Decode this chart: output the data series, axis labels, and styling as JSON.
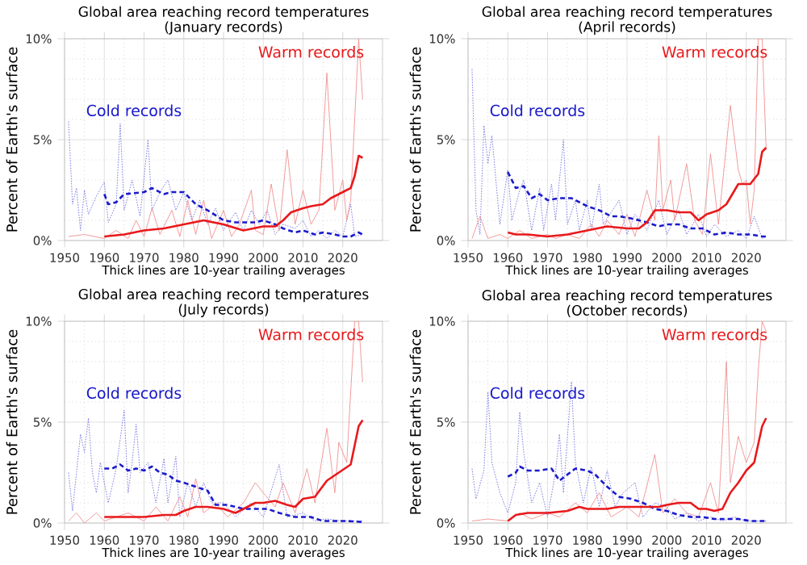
{
  "chart_data": [
    {
      "type": "line",
      "title": "Global area reaching record temperatures",
      "subtitle": "(January records)",
      "xlabel": "Thick lines are 10-year trailing averages",
      "ylabel": "Percent of Earth's surface",
      "xlim": [
        1950,
        2030
      ],
      "ylim": [
        0,
        10
      ],
      "xticks": [
        1950,
        1960,
        1970,
        1980,
        1990,
        2000,
        2010,
        2020
      ],
      "yticks": [
        {
          "value": 0,
          "label": "0%"
        },
        {
          "value": 5,
          "label": "5%"
        },
        {
          "value": 10,
          "label": "10%"
        }
      ],
      "grid": true,
      "series": [
        {
          "color": "#7070e0",
          "line_style": "dotted",
          "x": [
            1951,
            1952,
            1953,
            1954,
            1955,
            1956,
            1958,
            1960,
            1961,
            1963,
            1964,
            1965,
            1967,
            1969,
            1971,
            1972,
            1974,
            1976,
            1978,
            1980,
            1982,
            1984,
            1986,
            1988,
            1990,
            1993,
            1995,
            1997,
            1999,
            2001,
            2003,
            2005,
            2008,
            2010,
            2012,
            2014,
            2016,
            2018,
            2020,
            2022,
            2023,
            2025
          ],
          "values": [
            5.9,
            1.8,
            2.6,
            0.5,
            2.5,
            1.3,
            2.2,
            2.9,
            0.9,
            1.8,
            5.8,
            1.5,
            3.0,
            1.2,
            5.0,
            1.5,
            2.4,
            3.0,
            1.5,
            2.4,
            1.0,
            2.0,
            0.8,
            1.6,
            0.5,
            1.4,
            0.5,
            1.5,
            0.8,
            1.5,
            0.3,
            0.8,
            0.6,
            1.0,
            0.2,
            0.5,
            0.1,
            0.5,
            0.2,
            1.8,
            0.2,
            0.3
          ]
        },
        {
          "color": "#f09090",
          "line_style": "solid",
          "x": [
            1951,
            1955,
            1960,
            1963,
            1966,
            1968,
            1970,
            1972,
            1974,
            1977,
            1979,
            1981,
            1983,
            1985,
            1987,
            1990,
            1992,
            1994,
            1997,
            1998,
            2000,
            2002,
            2004,
            2006,
            2008,
            2010,
            2012,
            2014,
            2016,
            2018,
            2020,
            2021,
            2022,
            2023,
            2024,
            2025
          ],
          "values": [
            0.2,
            0.3,
            0.1,
            0.5,
            0.1,
            1.0,
            0.2,
            1.6,
            0.3,
            1.5,
            0.2,
            2.0,
            0.3,
            2.0,
            0.1,
            1.5,
            0.2,
            0.8,
            2.5,
            0.5,
            0.3,
            2.8,
            0.5,
            4.5,
            0.8,
            2.5,
            0.8,
            1.5,
            8.3,
            1.5,
            3.0,
            1.0,
            2.0,
            6.0,
            10,
            7.0
          ]
        },
        {
          "name": "Cold records",
          "color": "#1a1acc",
          "line_style": "dashed",
          "x": [
            1960,
            1961,
            1963,
            1965,
            1970,
            1972,
            1975,
            1977,
            1980,
            1983,
            1986,
            1990,
            1993,
            1995,
            1998,
            2000,
            2003,
            2005,
            2008,
            2010,
            2013,
            2015,
            2018,
            2020,
            2022,
            2024,
            2025
          ],
          "values": [
            2.3,
            1.8,
            1.9,
            2.3,
            2.4,
            2.6,
            2.3,
            2.4,
            2.4,
            1.8,
            1.5,
            1.0,
            0.9,
            0.9,
            0.9,
            1.0,
            0.8,
            0.6,
            0.4,
            0.5,
            0.3,
            0.4,
            0.3,
            0.2,
            0.2,
            0.4,
            0.3
          ]
        },
        {
          "name": "Warm records",
          "color": "#e8191b",
          "line_style": "solid",
          "x": [
            1960,
            1965,
            1970,
            1975,
            1980,
            1985,
            1990,
            1995,
            2000,
            2003,
            2005,
            2007,
            2010,
            2012,
            2015,
            2017,
            2020,
            2022,
            2023,
            2024,
            2025
          ],
          "values": [
            0.2,
            0.3,
            0.5,
            0.6,
            0.8,
            1.0,
            0.8,
            0.5,
            0.7,
            0.7,
            1.0,
            1.4,
            1.6,
            1.7,
            1.8,
            2.1,
            2.4,
            2.6,
            3.2,
            4.2,
            4.1
          ]
        }
      ]
    },
    {
      "type": "line",
      "title": "Global area reaching record temperatures",
      "subtitle": "(April records)",
      "xlabel": "Thick lines are 10-year trailing averages",
      "ylabel": "Percent of Earth's surface",
      "xlim": [
        1950,
        2030
      ],
      "ylim": [
        0,
        10
      ],
      "xticks": [
        1950,
        1960,
        1970,
        1980,
        1990,
        2000,
        2010,
        2020
      ],
      "yticks": [
        {
          "value": 0,
          "label": "0%"
        },
        {
          "value": 5,
          "label": "5%"
        },
        {
          "value": 10,
          "label": "10%"
        }
      ],
      "grid": true,
      "series": [
        {
          "color": "#7070e0",
          "line_style": "dotted",
          "x": [
            1951,
            1952,
            1953,
            1954,
            1955,
            1956,
            1957,
            1958,
            1960,
            1961,
            1963,
            1964,
            1966,
            1968,
            1969,
            1971,
            1972,
            1974,
            1975,
            1977,
            1978,
            1980,
            1981,
            1983,
            1984,
            1988,
            1990,
            1992,
            1995,
            1998,
            2000,
            2003,
            2005,
            2008,
            2010,
            2012,
            2015,
            2018,
            2020,
            2022,
            2024,
            2025
          ],
          "values": [
            8.5,
            1.5,
            0.3,
            5.7,
            3.8,
            5.2,
            3.0,
            0.8,
            3.5,
            1.0,
            2.5,
            3.0,
            0.5,
            2.6,
            0.5,
            2.8,
            1.0,
            5.0,
            0.8,
            2.0,
            0.5,
            2.0,
            0.5,
            2.8,
            0.8,
            2.0,
            0.3,
            1.3,
            0.5,
            2.0,
            0.3,
            1.5,
            0.3,
            1.3,
            0.2,
            0.8,
            0.2,
            0.5,
            0.1,
            1.2,
            0.1,
            0.2
          ]
        },
        {
          "color": "#f09090",
          "line_style": "solid",
          "x": [
            1951,
            1953,
            1955,
            1958,
            1960,
            1963,
            1966,
            1970,
            1972,
            1975,
            1978,
            1981,
            1983,
            1985,
            1988,
            1990,
            1992,
            1995,
            1997,
            1998,
            1999,
            2001,
            2002,
            2005,
            2007,
            2009,
            2011,
            2013,
            2016,
            2018,
            2019,
            2020,
            2021,
            2022,
            2023,
            2024,
            2025
          ],
          "values": [
            0.1,
            1.2,
            0.1,
            0.3,
            0.1,
            0.5,
            0.1,
            0.3,
            0.1,
            0.3,
            0.1,
            0.8,
            0.2,
            1.0,
            0.3,
            1.3,
            0.2,
            2.5,
            1.0,
            5.2,
            1.5,
            3.0,
            1.0,
            3.8,
            1.0,
            0.3,
            4.3,
            0.8,
            6.7,
            3.5,
            2.8,
            3.0,
            0.8,
            2.5,
            10,
            10,
            4.5
          ]
        },
        {
          "name": "Cold records",
          "color": "#1a1acc",
          "line_style": "dashed",
          "x": [
            1960,
            1962,
            1964,
            1966,
            1968,
            1970,
            1973,
            1976,
            1978,
            1980,
            1983,
            1986,
            1988,
            1991,
            1995,
            1998,
            2000,
            2003,
            2006,
            2009,
            2012,
            2015,
            2018,
            2021,
            2024,
            2025
          ],
          "values": [
            3.4,
            2.6,
            2.7,
            2.1,
            2.3,
            2.0,
            2.1,
            2.1,
            1.9,
            1.7,
            1.5,
            1.2,
            1.2,
            1.1,
            0.9,
            0.7,
            0.8,
            0.8,
            0.6,
            0.6,
            0.3,
            0.4,
            0.3,
            0.3,
            0.2,
            0.2
          ]
        },
        {
          "name": "Warm records",
          "color": "#e8191b",
          "line_style": "solid",
          "x": [
            1960,
            1962,
            1965,
            1970,
            1975,
            1980,
            1985,
            1990,
            1993,
            1995,
            1997,
            2000,
            2003,
            2006,
            2008,
            2010,
            2013,
            2015,
            2018,
            2021,
            2023,
            2024,
            2025
          ],
          "values": [
            0.4,
            0.3,
            0.3,
            0.2,
            0.3,
            0.5,
            0.7,
            0.6,
            0.6,
            0.9,
            1.5,
            1.5,
            1.4,
            1.4,
            1.0,
            1.3,
            1.5,
            1.8,
            2.8,
            2.8,
            3.3,
            4.4,
            4.6
          ]
        }
      ]
    },
    {
      "type": "line",
      "title": "Global area reaching record temperatures",
      "subtitle": "(July records)",
      "xlabel": "Thick lines are 10-year trailing averages",
      "ylabel": "Percent of Earth's surface",
      "xlim": [
        1950,
        2030
      ],
      "ylim": [
        0,
        10
      ],
      "xticks": [
        1950,
        1960,
        1970,
        1980,
        1990,
        2000,
        2010,
        2020
      ],
      "yticks": [
        {
          "value": 0,
          "label": "0%"
        },
        {
          "value": 5,
          "label": "5%"
        },
        {
          "value": 10,
          "label": "10%"
        }
      ],
      "grid": true,
      "series": [
        {
          "color": "#7070e0",
          "line_style": "dotted",
          "x": [
            1951,
            1952,
            1954,
            1955,
            1956,
            1957,
            1958,
            1959,
            1961,
            1963,
            1965,
            1966,
            1967,
            1968,
            1969,
            1971,
            1973,
            1975,
            1976,
            1978,
            1979,
            1981,
            1983,
            1985,
            1987,
            1990,
            1993,
            1997,
            2000,
            2004,
            2006,
            2010,
            2013,
            2016,
            2020,
            2025
          ],
          "values": [
            2.5,
            0.6,
            4.4,
            3.5,
            5.2,
            2.5,
            1.5,
            3.0,
            1.0,
            2.7,
            5.6,
            1.5,
            3.0,
            4.9,
            2.5,
            3.0,
            1.0,
            3.2,
            1.0,
            3.3,
            0.3,
            2.0,
            0.8,
            2.0,
            1.0,
            1.0,
            0.3,
            1.0,
            0.3,
            2.9,
            0.3,
            0.5,
            0.1,
            0.2,
            0.1,
            0.1
          ]
        },
        {
          "color": "#f09090",
          "line_style": "solid",
          "x": [
            1951,
            1953,
            1955,
            1958,
            1960,
            1963,
            1966,
            1970,
            1973,
            1976,
            1979,
            1981,
            1983,
            1985,
            1988,
            1991,
            1995,
            1998,
            2000,
            2003,
            2005,
            2008,
            2011,
            2013,
            2016,
            2018,
            2019,
            2021,
            2023,
            2024,
            2025
          ],
          "values": [
            0.1,
            0.5,
            0.0,
            0.5,
            0.1,
            0.3,
            0.5,
            0.1,
            0.8,
            0.1,
            1.3,
            0.3,
            2.2,
            0.5,
            1.0,
            0.3,
            1.0,
            2.0,
            1.5,
            0.8,
            2.0,
            0.5,
            2.7,
            1.0,
            4.7,
            1.5,
            4.0,
            3.0,
            10,
            10,
            7.0
          ]
        },
        {
          "name": "Cold records",
          "color": "#1a1acc",
          "line_style": "dashed",
          "x": [
            1960,
            1962,
            1964,
            1966,
            1968,
            1970,
            1972,
            1974,
            1976,
            1978,
            1980,
            1983,
            1986,
            1988,
            1991,
            1995,
            1998,
            2001,
            2004,
            2008,
            2012,
            2015,
            2018,
            2021,
            2025
          ],
          "values": [
            2.7,
            2.7,
            2.9,
            2.6,
            2.7,
            2.6,
            2.8,
            2.5,
            2.4,
            2.1,
            2.0,
            1.8,
            1.6,
            0.9,
            0.9,
            0.7,
            0.7,
            0.7,
            0.5,
            0.3,
            0.3,
            0.1,
            0.1,
            0.1,
            0.05
          ]
        },
        {
          "name": "Warm records",
          "color": "#e8191b",
          "line_style": "solid",
          "x": [
            1960,
            1965,
            1970,
            1975,
            1978,
            1980,
            1983,
            1986,
            1990,
            1993,
            1996,
            1998,
            2000,
            2003,
            2006,
            2008,
            2010,
            2013,
            2016,
            2019,
            2022,
            2024,
            2025
          ],
          "values": [
            0.3,
            0.3,
            0.3,
            0.4,
            0.4,
            0.6,
            0.8,
            0.8,
            0.7,
            0.5,
            0.8,
            1.0,
            1.0,
            1.1,
            0.9,
            0.8,
            1.2,
            1.3,
            2.1,
            2.5,
            2.9,
            4.8,
            5.1
          ]
        }
      ]
    },
    {
      "type": "line",
      "title": "Global area reaching record temperatures",
      "subtitle": "(October records)",
      "xlabel": "Thick lines are 10-year trailing averages",
      "ylabel": "Percent of Earth's surface",
      "xlim": [
        1950,
        2030
      ],
      "ylim": [
        0,
        10
      ],
      "xticks": [
        1950,
        1960,
        1970,
        1980,
        1990,
        2000,
        2010,
        2020
      ],
      "yticks": [
        {
          "value": 0,
          "label": "0%"
        },
        {
          "value": 5,
          "label": "5%"
        },
        {
          "value": 10,
          "label": "10%"
        }
      ],
      "grid": true,
      "series": [
        {
          "color": "#7070e0",
          "line_style": "dotted",
          "x": [
            1951,
            1952,
            1954,
            1955,
            1956,
            1958,
            1960,
            1962,
            1963,
            1964,
            1966,
            1968,
            1970,
            1972,
            1973,
            1974,
            1976,
            1977,
            1979,
            1981,
            1983,
            1985,
            1987,
            1989,
            1992,
            1994,
            1997,
            2000,
            2002,
            2005,
            2008,
            2011,
            2014,
            2017,
            2020,
            2025
          ],
          "values": [
            2.7,
            1.2,
            2.6,
            6.5,
            3.0,
            1.5,
            0.5,
            2.0,
            5.5,
            3.5,
            1.0,
            2.0,
            0.3,
            2.5,
            4.4,
            1.5,
            7.0,
            3.0,
            1.0,
            2.8,
            0.8,
            2.6,
            0.8,
            1.5,
            2.0,
            0.3,
            1.0,
            0.8,
            0.2,
            0.5,
            0.1,
            0.3,
            0.1,
            0.3,
            0.1,
            0.1
          ]
        },
        {
          "color": "#f09090",
          "line_style": "solid",
          "x": [
            1951,
            1955,
            1960,
            1963,
            1966,
            1970,
            1973,
            1977,
            1980,
            1983,
            1986,
            1990,
            1993,
            1997,
            1999,
            2002,
            2005,
            2008,
            2011,
            2013,
            2015,
            2016,
            2018,
            2020,
            2022,
            2023,
            2024,
            2025
          ],
          "values": [
            0.1,
            0.2,
            0.1,
            0.5,
            0.2,
            0.5,
            0.3,
            1.0,
            0.5,
            1.5,
            0.3,
            0.8,
            0.3,
            3.4,
            0.5,
            1.2,
            0.5,
            0.3,
            2.0,
            0.5,
            8.0,
            2.0,
            4.3,
            3.0,
            4.0,
            7.5,
            10.0,
            9.5
          ]
        },
        {
          "name": "Cold records",
          "color": "#1a1acc",
          "line_style": "dashed",
          "x": [
            1960,
            1962,
            1963,
            1965,
            1968,
            1971,
            1973,
            1975,
            1977,
            1980,
            1982,
            1985,
            1988,
            1991,
            1994,
            1997,
            2000,
            2003,
            2006,
            2009,
            2012,
            2015,
            2018,
            2021,
            2025
          ],
          "values": [
            2.3,
            2.5,
            2.8,
            2.6,
            2.6,
            2.7,
            2.1,
            2.4,
            2.7,
            2.6,
            2.4,
            1.8,
            1.3,
            1.2,
            1.0,
            0.7,
            0.6,
            0.4,
            0.3,
            0.3,
            0.2,
            0.2,
            0.2,
            0.1,
            0.1
          ]
        },
        {
          "name": "Warm records",
          "color": "#e8191b",
          "line_style": "solid",
          "x": [
            1960,
            1962,
            1965,
            1970,
            1975,
            1978,
            1980,
            1985,
            1988,
            1992,
            1995,
            1998,
            2000,
            2003,
            2006,
            2008,
            2010,
            2012,
            2014,
            2016,
            2018,
            2020,
            2022,
            2024,
            2025
          ],
          "values": [
            0.1,
            0.4,
            0.5,
            0.5,
            0.6,
            0.8,
            0.7,
            0.7,
            0.8,
            0.8,
            0.8,
            0.8,
            0.9,
            1.0,
            1.0,
            0.7,
            0.7,
            0.6,
            0.7,
            1.5,
            2.0,
            2.6,
            3.0,
            4.8,
            5.2
          ]
        }
      ]
    }
  ]
}
